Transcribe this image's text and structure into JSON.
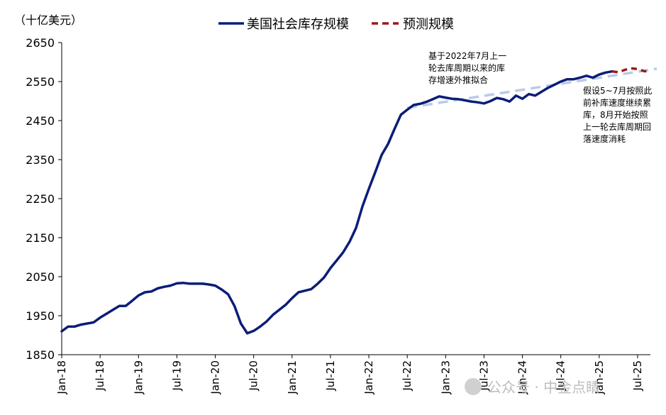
{
  "chart_data": {
    "type": "line",
    "unit_label": "（十亿美元）",
    "ylim": [
      1850,
      2650
    ],
    "yticks": [
      1850,
      1950,
      2050,
      2150,
      2250,
      2350,
      2450,
      2550,
      2650
    ],
    "x_tick_labels": [
      "Jan-18",
      "Jul-18",
      "Jan-19",
      "Jul-19",
      "Jan-20",
      "Jul-20",
      "Jan-21",
      "Jul-21",
      "Jan-22",
      "Jul-22",
      "Jan-23",
      "Jul-23",
      "Jan-24",
      "Jul-24",
      "Jan-25",
      "Jul-25"
    ],
    "x_start": "2018-01",
    "x_end": "2025-09",
    "grid": false,
    "legend_position": "top",
    "series": [
      {
        "name": "美国社会库存规模",
        "color": "#0b1d78",
        "style": "solid",
        "points": [
          [
            "2018-01",
            1910
          ],
          [
            "2018-02",
            1922
          ],
          [
            "2018-03",
            1922
          ],
          [
            "2018-04",
            1927
          ],
          [
            "2018-05",
            1930
          ],
          [
            "2018-06",
            1933
          ],
          [
            "2018-07",
            1945
          ],
          [
            "2018-08",
            1955
          ],
          [
            "2018-09",
            1965
          ],
          [
            "2018-10",
            1975
          ],
          [
            "2018-11",
            1975
          ],
          [
            "2018-12",
            1988
          ],
          [
            "2019-01",
            2002
          ],
          [
            "2019-02",
            2010
          ],
          [
            "2019-03",
            2012
          ],
          [
            "2019-04",
            2020
          ],
          [
            "2019-05",
            2024
          ],
          [
            "2019-06",
            2027
          ],
          [
            "2019-07",
            2033
          ],
          [
            "2019-08",
            2034
          ],
          [
            "2019-09",
            2032
          ],
          [
            "2019-10",
            2032
          ],
          [
            "2019-11",
            2032
          ],
          [
            "2019-12",
            2030
          ],
          [
            "2020-01",
            2027
          ],
          [
            "2020-02",
            2017
          ],
          [
            "2020-03",
            2005
          ],
          [
            "2020-04",
            1975
          ],
          [
            "2020-05",
            1930
          ],
          [
            "2020-06",
            1905
          ],
          [
            "2020-07",
            1911
          ],
          [
            "2020-08",
            1922
          ],
          [
            "2020-09",
            1935
          ],
          [
            "2020-10",
            1952
          ],
          [
            "2020-11",
            1965
          ],
          [
            "2020-12",
            1978
          ],
          [
            "2021-01",
            1995
          ],
          [
            "2021-02",
            2010
          ],
          [
            "2021-03",
            2014
          ],
          [
            "2021-04",
            2018
          ],
          [
            "2021-05",
            2032
          ],
          [
            "2021-06",
            2048
          ],
          [
            "2021-07",
            2072
          ],
          [
            "2021-08",
            2092
          ],
          [
            "2021-09",
            2113
          ],
          [
            "2021-10",
            2140
          ],
          [
            "2021-11",
            2175
          ],
          [
            "2021-12",
            2230
          ],
          [
            "2022-01",
            2275
          ],
          [
            "2022-02",
            2318
          ],
          [
            "2022-03",
            2362
          ],
          [
            "2022-04",
            2390
          ],
          [
            "2022-05",
            2428
          ],
          [
            "2022-06",
            2465
          ],
          [
            "2022-07",
            2478
          ],
          [
            "2022-08",
            2490
          ],
          [
            "2022-09",
            2493
          ],
          [
            "2022-10",
            2498
          ],
          [
            "2022-11",
            2505
          ],
          [
            "2022-12",
            2512
          ],
          [
            "2023-01",
            2509
          ],
          [
            "2023-02",
            2506
          ],
          [
            "2023-03",
            2505
          ],
          [
            "2023-04",
            2502
          ],
          [
            "2023-05",
            2499
          ],
          [
            "2023-06",
            2497
          ],
          [
            "2023-07",
            2494
          ],
          [
            "2023-08",
            2500
          ],
          [
            "2023-09",
            2508
          ],
          [
            "2023-10",
            2505
          ],
          [
            "2023-11",
            2499
          ],
          [
            "2023-12",
            2514
          ],
          [
            "2024-01",
            2506
          ],
          [
            "2024-02",
            2518
          ],
          [
            "2024-03",
            2514
          ],
          [
            "2024-04",
            2524
          ],
          [
            "2024-05",
            2534
          ],
          [
            "2024-06",
            2542
          ],
          [
            "2024-07",
            2550
          ],
          [
            "2024-08",
            2556
          ],
          [
            "2024-09",
            2556
          ],
          [
            "2024-10",
            2560
          ],
          [
            "2024-11",
            2565
          ],
          [
            "2024-12",
            2560
          ],
          [
            "2025-01",
            2568
          ],
          [
            "2025-02",
            2573
          ],
          [
            "2025-03",
            2576
          ]
        ]
      },
      {
        "name": "预测规模",
        "color": "#9b1a1a",
        "style": "dashed",
        "points": [
          [
            "2025-03",
            2576
          ],
          [
            "2025-04",
            2574
          ],
          [
            "2025-05",
            2580
          ],
          [
            "2025-06",
            2584
          ],
          [
            "2025-07",
            2582
          ],
          [
            "2025-08",
            2577
          ],
          [
            "2025-09",
            2575
          ]
        ]
      },
      {
        "name": "",
        "color": "#b8cbe6",
        "style": "dashed",
        "points": [
          [
            "2022-07",
            2483
          ],
          [
            "2025-10",
            2583
          ]
        ]
      }
    ],
    "annotations": [
      {
        "lines": [
          "基于2022年7月上一",
          "轮去库周期以来的库",
          "存增速外推拟合"
        ]
      },
      {
        "lines": [
          "假设5~7月按照此",
          "前补库速度继续累",
          "库，8月开始按照",
          "上一轮去库周期回",
          "落速度消耗"
        ]
      }
    ],
    "watermark": "公众号 · 中金点睛"
  }
}
